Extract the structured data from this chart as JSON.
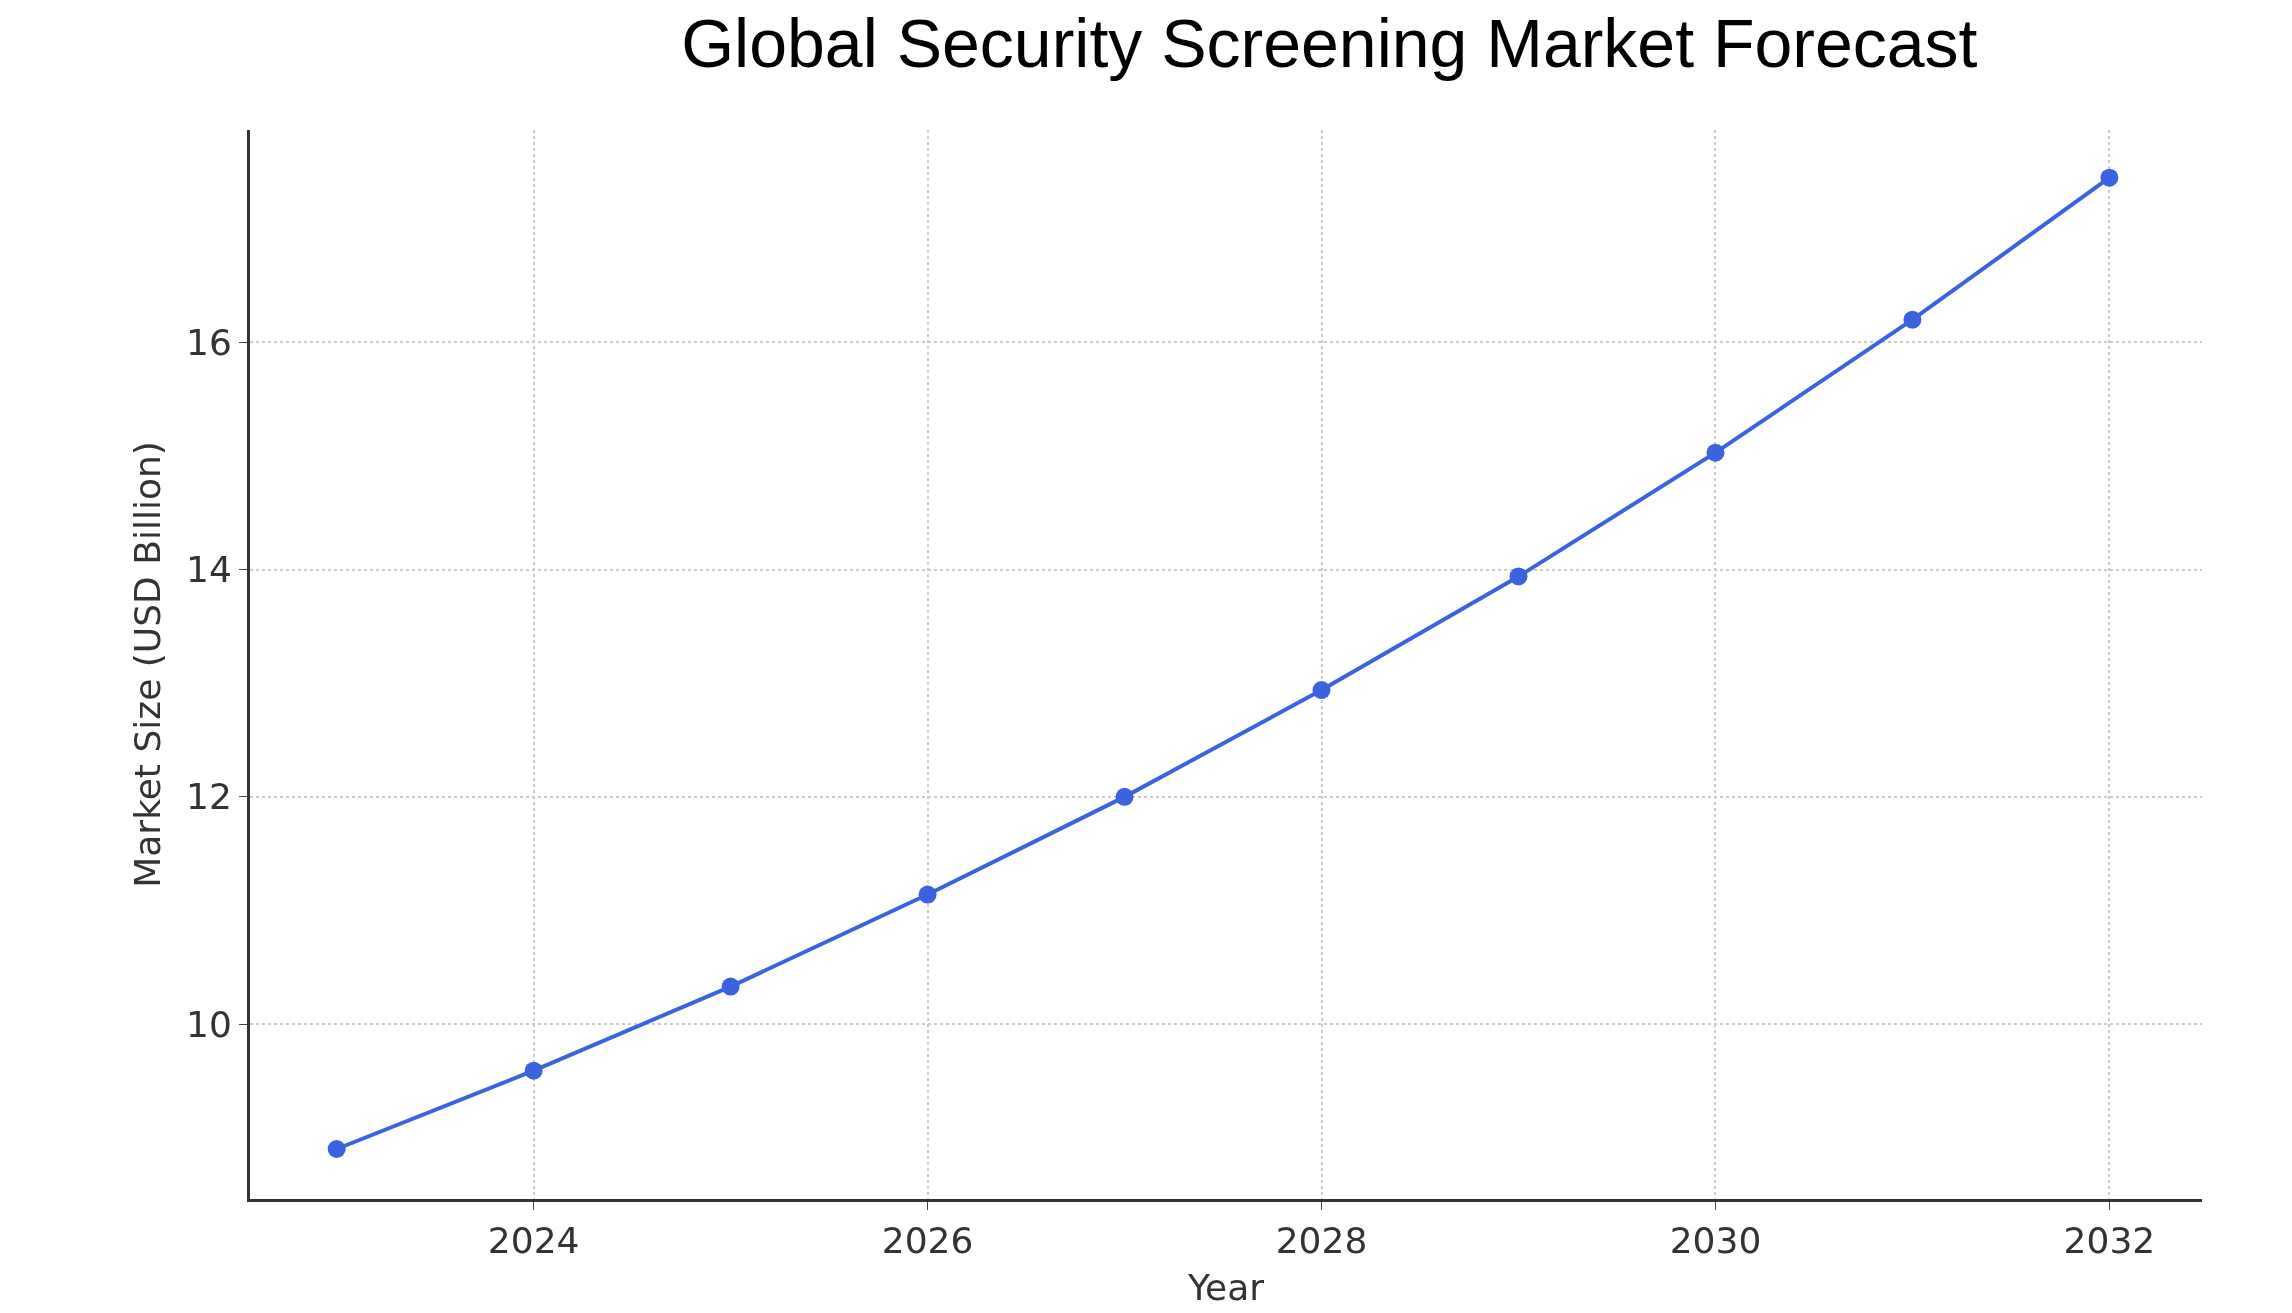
{
  "chart_data": {
    "type": "line",
    "title": "Global Security Screening Market Forecast",
    "xlabel": "Year",
    "ylabel": "Market Size (USD Billion)",
    "x": [
      2023,
      2024,
      2025,
      2026,
      2027,
      2028,
      2029,
      2030,
      2031,
      2032
    ],
    "series": [
      {
        "color": "#3b63e0",
        "values": [
          8.9,
          9.59,
          10.33,
          11.14,
          12.0,
          12.94,
          13.94,
          15.03,
          16.2,
          17.45
        ]
      }
    ],
    "xlim": [
      2022.56,
      2032.47
    ],
    "xticks": [
      2024,
      2026,
      2028,
      2030,
      2032
    ],
    "ylim": [
      8.46,
      17.87
    ],
    "yticks": [
      10,
      12,
      14,
      16
    ],
    "grid": true,
    "marker": "circle",
    "line_style": "solid"
  }
}
